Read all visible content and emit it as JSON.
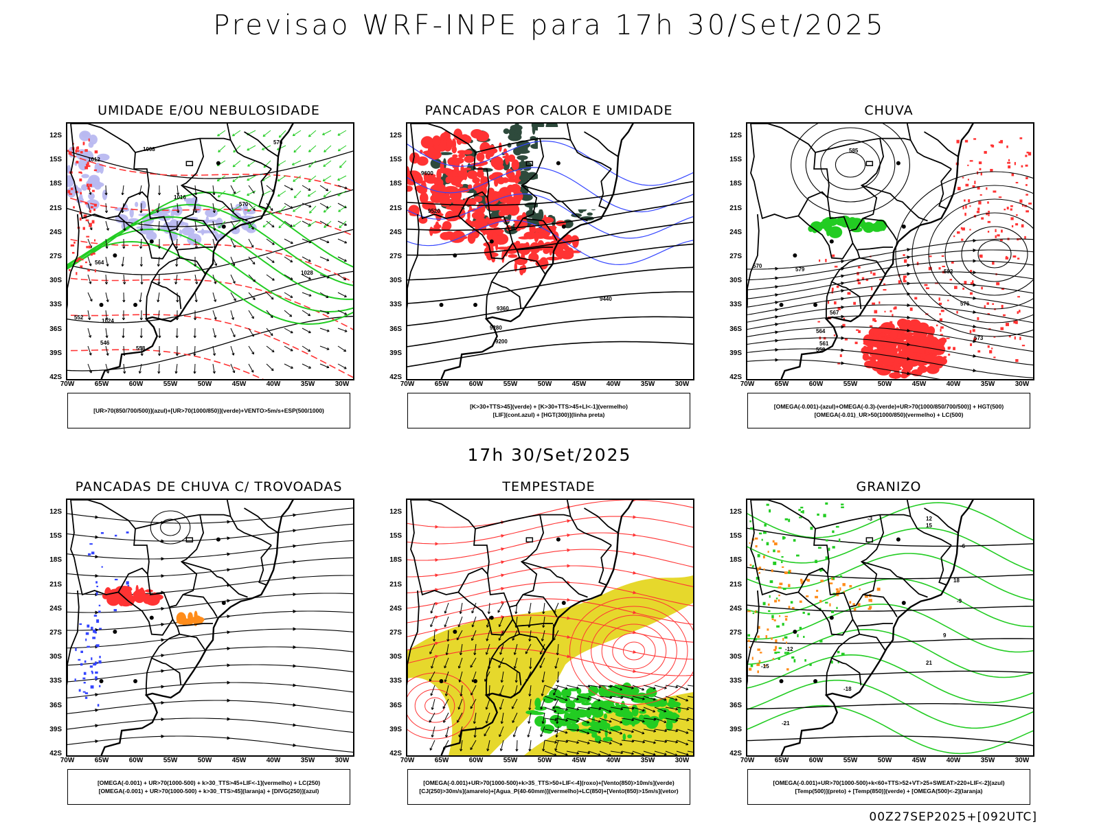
{
  "header": {
    "title": "Previsao WRF-INPE  para 17h 30/Set/2025"
  },
  "middle": {
    "title": "17h 30/Set/2025"
  },
  "footer": {
    "run_id": "00Z27SEP2025+[092UTC]"
  },
  "axes": {
    "lat_labels": [
      "12S",
      "15S",
      "18S",
      "21S",
      "24S",
      "27S",
      "30S",
      "33S",
      "36S",
      "39S",
      "42S"
    ],
    "lon_labels": [
      "70W",
      "65W",
      "60W",
      "55W",
      "50W",
      "45W",
      "40W",
      "35W",
      "30W"
    ]
  },
  "panels": [
    {
      "title": "UMIDADE E/OU NEBULOSIDADE",
      "legend": [
        "[UR>70(850/700/500)](azul)+[UR>70(1000/850)](verde)+VENTO>5m/s+ESP(500/1000)"
      ],
      "contour_labels": [
        "1008",
        "1012",
        "1016",
        "1020",
        "1024",
        "1028",
        "570",
        "576",
        "564",
        "552",
        "546",
        "558"
      ]
    },
    {
      "title": "PANCADAS POR CALOR E UMIDADE",
      "legend": [
        "[K>30+TTS>45](verde) + [K>30+TTS>45+LI<-1](vermelho)",
        "[LIF](cont.azul) + [HGT(300)](linha preta)"
      ],
      "contour_labels": [
        "9600",
        "9520",
        "9440",
        "9360",
        "9280",
        "9200"
      ]
    },
    {
      "title": "CHUVA",
      "legend": [
        "[OMEGA(-0.001)-(azul)+OMEGA(-0.3)-(verde)+UR>70(1000/850/700/500)] + HGT(500)",
        "[OMEGA(-0.01)_UR>50(1000/850)(vermelho) + LC(500)"
      ],
      "contour_labels": [
        "585",
        "579",
        "582",
        "576",
        "573",
        "570",
        "567",
        "564",
        "561",
        "558"
      ]
    },
    {
      "title": "PANCADAS DE CHUVA C/ TROVOADAS",
      "legend": [
        "[OMEGA(-0.001) + UR>70(1000-500) + k>30_TTS>45+LIF<-1](vermelho) + LC(250)",
        "[OMEGA(-0.001) + UR>70(1000-500) + k>30_TTS>45](laranja) + [DIVG(250)](azul)"
      ],
      "contour_labels": []
    },
    {
      "title": "TEMPESTADE",
      "legend": [
        "[OMEGA(-0.001)+UR>70(1000-500)+k>35_TTS>50+LIF<-4](roxo)+[Vento(850)>10m/s](verde)",
        "[CJ(250)>30m/s](amarelo)+[Agua_P(40-60mm)](vermelho)+LC(850)+[Vento(850)>15m/s](vetor)"
      ],
      "contour_labels": []
    },
    {
      "title": "GRANIZO",
      "legend": [
        "[OMEGA(-0.001)+UR>70(1000-500)+k<60+TTS>52+VT>25+SWEAT>220+LIF<-2](azul)",
        "[Temp(500)](preto) + [Temp(850)](verde) + [OMEGA(500)<-2](laranja)"
      ],
      "contour_labels": [
        "-3",
        "-6",
        "-9",
        "-12",
        "-15",
        "-18",
        "-21",
        "9",
        "12",
        "15",
        "18",
        "21"
      ]
    }
  ],
  "colors": {
    "black": "#000000",
    "red": "#ff3333",
    "green": "#22cc22",
    "blue": "#3344ff",
    "lavender": "#b8b8f0",
    "darkgreen": "#2e4a3c",
    "yellow": "#e6d82c",
    "orange": "#ff8c1a"
  }
}
